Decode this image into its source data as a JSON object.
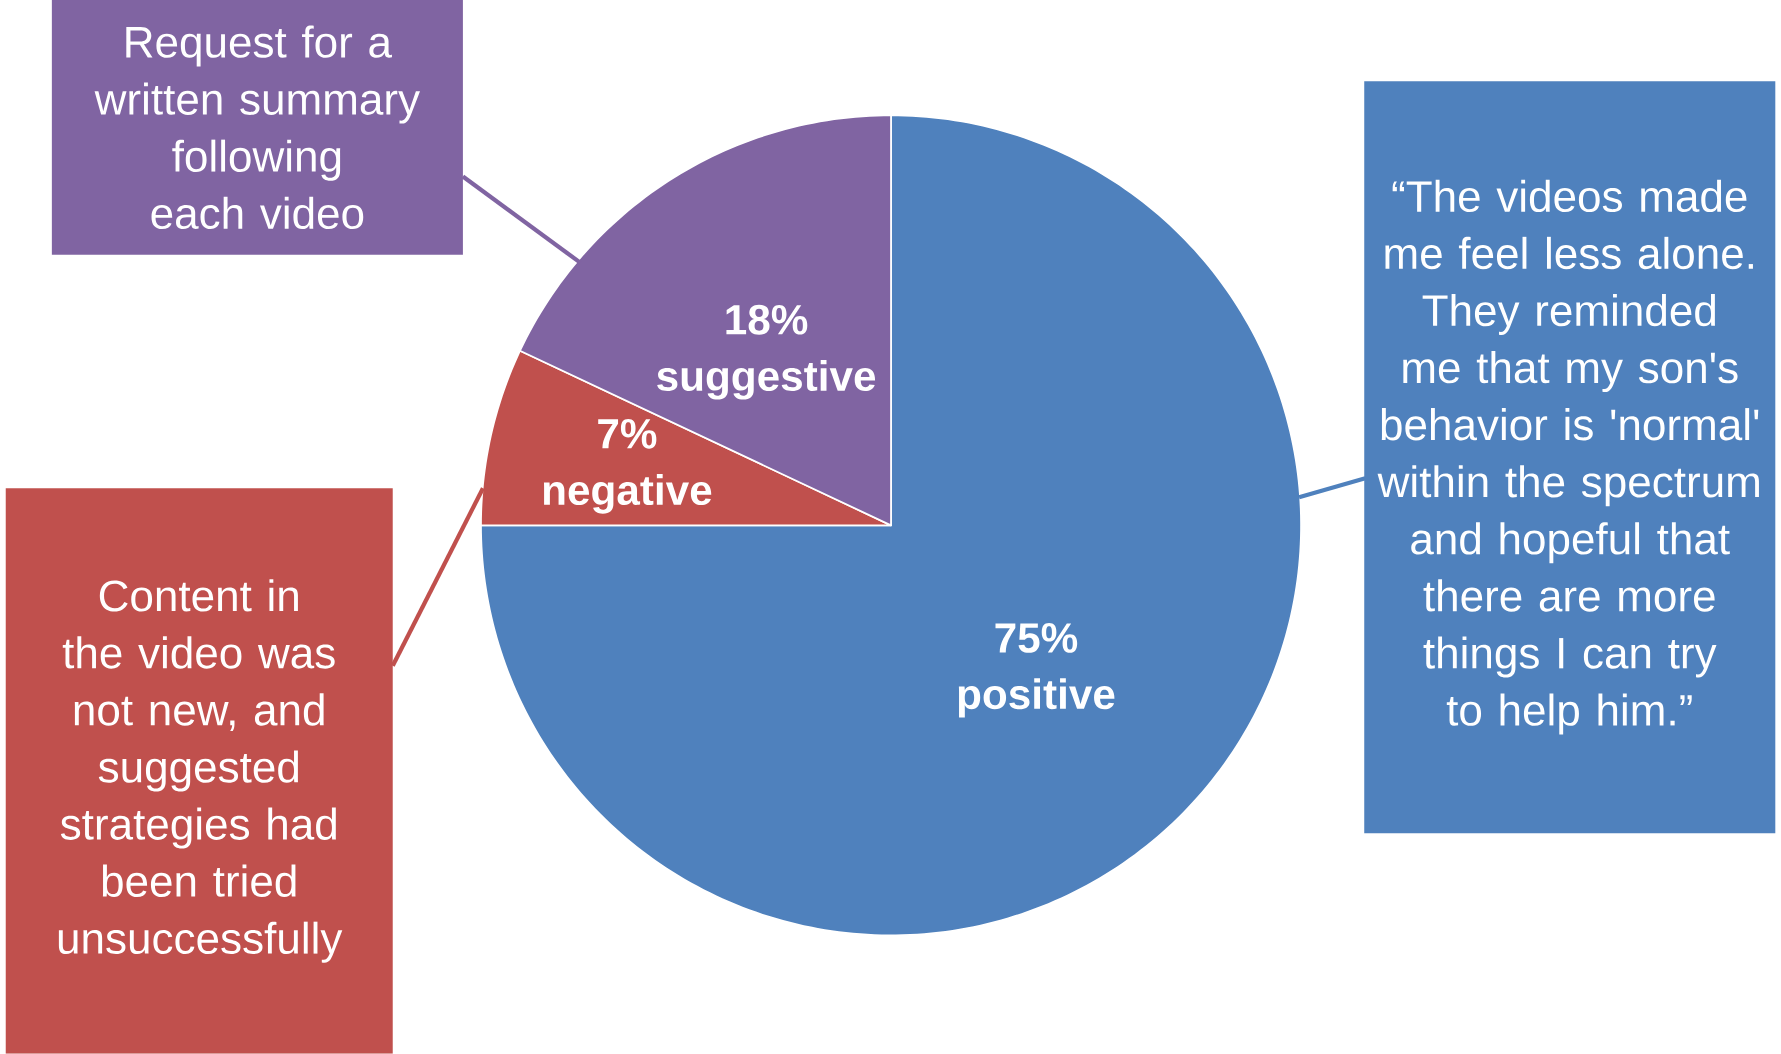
{
  "chart_data": {
    "type": "pie",
    "categories": [
      "positive",
      "negative",
      "suggestive"
    ],
    "values": [
      75,
      7,
      18
    ],
    "value_labels": [
      "75%",
      "7%",
      "18%"
    ],
    "colors": [
      "#4f81bd",
      "#c0504d",
      "#8064a2"
    ],
    "annotations": [
      "“The videos made me feel less alone. They reminded me that my son's behavior is 'normal' within the spectrum and hopeful that there are more things I can try to help him.”",
      "Content in the video was not new, and suggested strategies had been tried unsuccessfully",
      "Request for a written summary following each video"
    ]
  }
}
